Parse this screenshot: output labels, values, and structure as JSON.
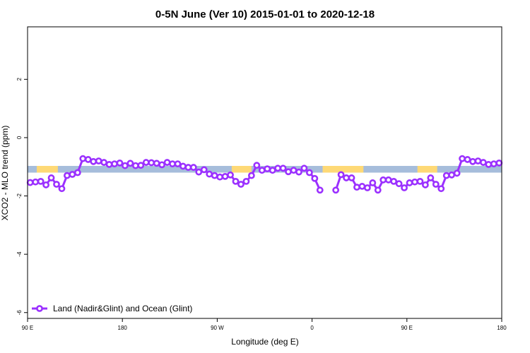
{
  "chart_data": {
    "type": "line",
    "title": "0-5N June (Ver 10)   2015-01-01 to 2020-12-18",
    "xlabel": "Longitude (deg E)",
    "ylabel": "XCO2 - MLO trend (ppm)",
    "x_axis_domain": [
      0,
      360
    ],
    "xlim": [
      0,
      360
    ],
    "ylim": [
      -6.2,
      3.8
    ],
    "x_ticks": [
      {
        "pos": 0,
        "label": "90 E"
      },
      {
        "pos": 72,
        "label": "180"
      },
      {
        "pos": 144,
        "label": "90 W"
      },
      {
        "pos": 216,
        "label": "0"
      },
      {
        "pos": 288,
        "label": "90 E"
      },
      {
        "pos": 360,
        "label": "180"
      }
    ],
    "y_ticks": [
      {
        "value": 2,
        "label": "2"
      },
      {
        "value": 0,
        "label": "0"
      },
      {
        "value": -2,
        "label": "-2"
      },
      {
        "value": -4,
        "label": "-4"
      },
      {
        "value": -6,
        "label": "-6"
      }
    ],
    "band": {
      "y_range": [
        -1.2,
        -0.97
      ],
      "ocean_color": "#A6BDDB",
      "land_color": "#FED976",
      "land_segments": [
        [
          7,
          23
        ],
        [
          155,
          170
        ],
        [
          224,
          255
        ],
        [
          296,
          311
        ]
      ]
    },
    "legend": {
      "position": "bottom-left",
      "label": "Land (Nadir&Glint) and Ocean (Glint)"
    },
    "series": [
      {
        "name": "Land (Nadir&Glint) and Ocean (Glint)",
        "color": "#9B30FF",
        "segments": [
          [
            [
              2,
              -1.54
            ],
            [
              6,
              -1.52
            ],
            [
              10,
              -1.5
            ],
            [
              14,
              -1.62
            ],
            [
              18,
              -1.38
            ],
            [
              22,
              -1.6
            ],
            [
              26,
              -1.75
            ],
            [
              30,
              -1.3
            ],
            [
              34,
              -1.26
            ],
            [
              38,
              -1.2
            ],
            [
              42,
              -0.72
            ],
            [
              46,
              -0.75
            ],
            [
              50,
              -0.82
            ],
            [
              54,
              -0.8
            ],
            [
              58,
              -0.85
            ],
            [
              62,
              -0.92
            ],
            [
              66,
              -0.9
            ],
            [
              70,
              -0.87
            ],
            [
              74,
              -0.96
            ],
            [
              78,
              -0.88
            ],
            [
              82,
              -0.96
            ],
            [
              86,
              -0.95
            ],
            [
              90,
              -0.85
            ],
            [
              94,
              -0.86
            ],
            [
              98,
              -0.88
            ],
            [
              102,
              -0.93
            ],
            [
              106,
              -0.85
            ],
            [
              110,
              -0.9
            ],
            [
              114,
              -0.9
            ],
            [
              118,
              -0.98
            ],
            [
              122,
              -1.02
            ],
            [
              126,
              -1.02
            ],
            [
              130,
              -1.18
            ],
            [
              134,
              -1.1
            ],
            [
              138,
              -1.25
            ],
            [
              142,
              -1.3
            ],
            [
              146,
              -1.35
            ],
            [
              150,
              -1.33
            ],
            [
              154,
              -1.28
            ],
            [
              158,
              -1.5
            ],
            [
              162,
              -1.6
            ],
            [
              166,
              -1.5
            ],
            [
              170,
              -1.3
            ],
            [
              174,
              -0.95
            ],
            [
              178,
              -1.12
            ],
            [
              182,
              -1.07
            ],
            [
              186,
              -1.12
            ],
            [
              190,
              -1.05
            ],
            [
              194,
              -1.05
            ],
            [
              198,
              -1.17
            ],
            [
              202,
              -1.12
            ],
            [
              206,
              -1.18
            ],
            [
              210,
              -1.05
            ],
            [
              214,
              -1.2
            ],
            [
              218,
              -1.4
            ],
            [
              222,
              -1.8
            ]
          ],
          [
            [
              234,
              -1.8
            ],
            [
              238,
              -1.27
            ],
            [
              242,
              -1.38
            ],
            [
              246,
              -1.38
            ],
            [
              250,
              -1.7
            ],
            [
              254,
              -1.67
            ],
            [
              258,
              -1.72
            ],
            [
              262,
              -1.55
            ],
            [
              266,
              -1.8
            ],
            [
              270,
              -1.45
            ],
            [
              274,
              -1.45
            ],
            [
              278,
              -1.5
            ],
            [
              282,
              -1.58
            ],
            [
              286,
              -1.72
            ],
            [
              290,
              -1.55
            ],
            [
              294,
              -1.52
            ],
            [
              298,
              -1.5
            ],
            [
              302,
              -1.62
            ],
            [
              306,
              -1.38
            ],
            [
              310,
              -1.6
            ],
            [
              314,
              -1.75
            ],
            [
              318,
              -1.3
            ],
            [
              322,
              -1.28
            ],
            [
              326,
              -1.22
            ],
            [
              330,
              -0.72
            ],
            [
              334,
              -0.75
            ],
            [
              338,
              -0.82
            ],
            [
              342,
              -0.8
            ],
            [
              346,
              -0.85
            ],
            [
              350,
              -0.92
            ],
            [
              354,
              -0.9
            ],
            [
              358,
              -0.87
            ]
          ]
        ]
      }
    ]
  }
}
